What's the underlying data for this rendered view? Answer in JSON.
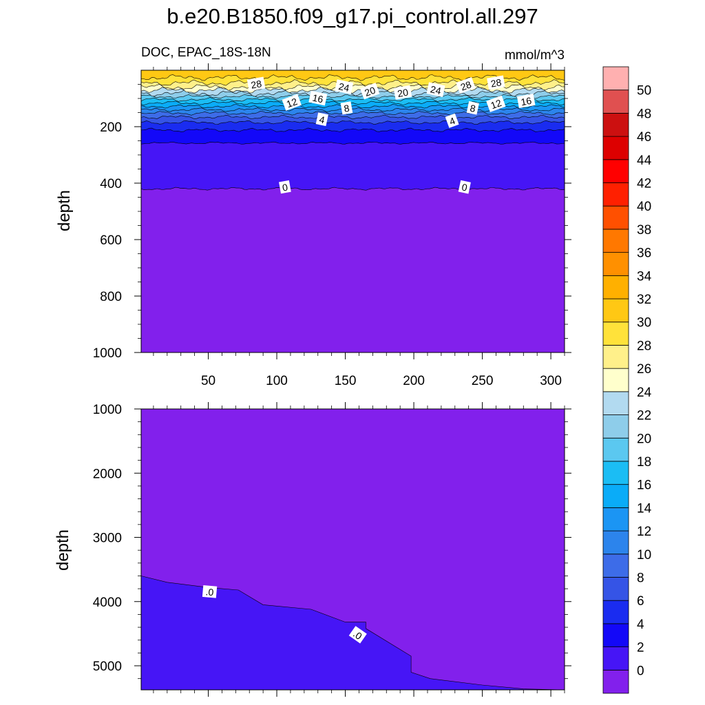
{
  "chart_data": {
    "type": "contour",
    "title": "b.e20.B1850.f09_g17.pi_control.all.297",
    "colorbar": {
      "levels": [
        0,
        2,
        4,
        6,
        8,
        10,
        12,
        14,
        16,
        18,
        20,
        22,
        24,
        26,
        28,
        30,
        32,
        34,
        36,
        38,
        40,
        42,
        44,
        46,
        48,
        50
      ],
      "level_labels": [
        "0",
        "2",
        "4",
        "6",
        "8",
        "10",
        "12",
        "14",
        "16",
        "18",
        "20",
        "22",
        "24",
        "26",
        "28",
        "30",
        "32",
        "34",
        "36",
        "38",
        "40",
        "42",
        "44",
        "46",
        "48",
        "50"
      ],
      "colors": [
        "#8220ec",
        "#4615f6",
        "#1308f8",
        "#1a2cf0",
        "#3554e6",
        "#3d6ce8",
        "#2c84ec",
        "#1b95f4",
        "#0aacf8",
        "#1bbdf4",
        "#5bc8f0",
        "#8ecdea",
        "#b2daf0",
        "#ffffcc",
        "#fff08a",
        "#ffe23a",
        "#ffc814",
        "#ffb000",
        "#ff9000",
        "#ff7800",
        "#ff5000",
        "#ff2000",
        "#ff0000",
        "#dd0000",
        "#cc1010",
        "#e05050",
        "#ffb0b0"
      ]
    },
    "panels": [
      {
        "name": "upper",
        "subtitle_left": "DOC, EPAC_18S-18N",
        "subtitle_right": "mmol/m^3",
        "ylabel": "depth",
        "ylim": [
          0,
          1000
        ],
        "yticks": [
          200,
          400,
          600,
          800,
          1000
        ],
        "ytick_labels": [
          "200",
          "400",
          "600",
          "800",
          "1000"
        ],
        "xlim": [
          1,
          310
        ],
        "xticks": [
          50,
          100,
          150,
          200,
          250,
          300
        ],
        "xtick_labels": [
          "50",
          "100",
          "150",
          "200",
          "250",
          "300"
        ],
        "contour_labels": [
          {
            "text": "28",
            "x": 85,
            "y": 50
          },
          {
            "text": "24",
            "x": 149,
            "y": 60
          },
          {
            "text": "20",
            "x": 168,
            "y": 75
          },
          {
            "text": "20",
            "x": 192,
            "y": 80
          },
          {
            "text": "24",
            "x": 216,
            "y": 70
          },
          {
            "text": "28",
            "x": 238,
            "y": 55
          },
          {
            "text": "28",
            "x": 260,
            "y": 45
          },
          {
            "text": "16",
            "x": 130,
            "y": 100
          },
          {
            "text": "12",
            "x": 111,
            "y": 115
          },
          {
            "text": "8",
            "x": 151,
            "y": 135
          },
          {
            "text": "8",
            "x": 243,
            "y": 135
          },
          {
            "text": "12",
            "x": 260,
            "y": 120
          },
          {
            "text": "16",
            "x": 282,
            "y": 110
          },
          {
            "text": "4",
            "x": 133,
            "y": 175
          },
          {
            "text": "4",
            "x": 228,
            "y": 180
          },
          {
            "text": "0",
            "x": 106,
            "y": 415
          },
          {
            "text": "0",
            "x": 237,
            "y": 415
          }
        ]
      },
      {
        "name": "lower",
        "ylabel": "depth",
        "ylim": [
          1000,
          5375
        ],
        "yticks": [
          1000,
          2000,
          3000,
          4000,
          5000
        ],
        "ytick_labels": [
          "1000",
          "2000",
          "3000",
          "4000",
          "5000"
        ],
        "xlim": [
          1,
          310
        ],
        "xticks": [
          50,
          100,
          150,
          200,
          250,
          300
        ],
        "boundary_0_to_2": [
          {
            "x": 1,
            "depth": 3600
          },
          {
            "x": 20,
            "depth": 3700
          },
          {
            "x": 50,
            "depth": 3780
          },
          {
            "x": 72,
            "depth": 3820
          },
          {
            "x": 90,
            "depth": 4050
          },
          {
            "x": 125,
            "depth": 4120
          },
          {
            "x": 150,
            "depth": 4320
          },
          {
            "x": 165,
            "depth": 4320
          },
          {
            "x": 165,
            "depth": 4420
          },
          {
            "x": 198,
            "depth": 4850
          },
          {
            "x": 198,
            "depth": 5100
          },
          {
            "x": 212,
            "depth": 5200
          },
          {
            "x": 250,
            "depth": 5300
          },
          {
            "x": 280,
            "depth": 5360
          },
          {
            "x": 310,
            "depth": 5375
          }
        ],
        "contour_labels": [
          {
            "text": ".0",
            "x": 51,
            "y": 3850
          },
          {
            "text": ".0",
            "x": 159,
            "y": 4520
          }
        ]
      }
    ]
  }
}
